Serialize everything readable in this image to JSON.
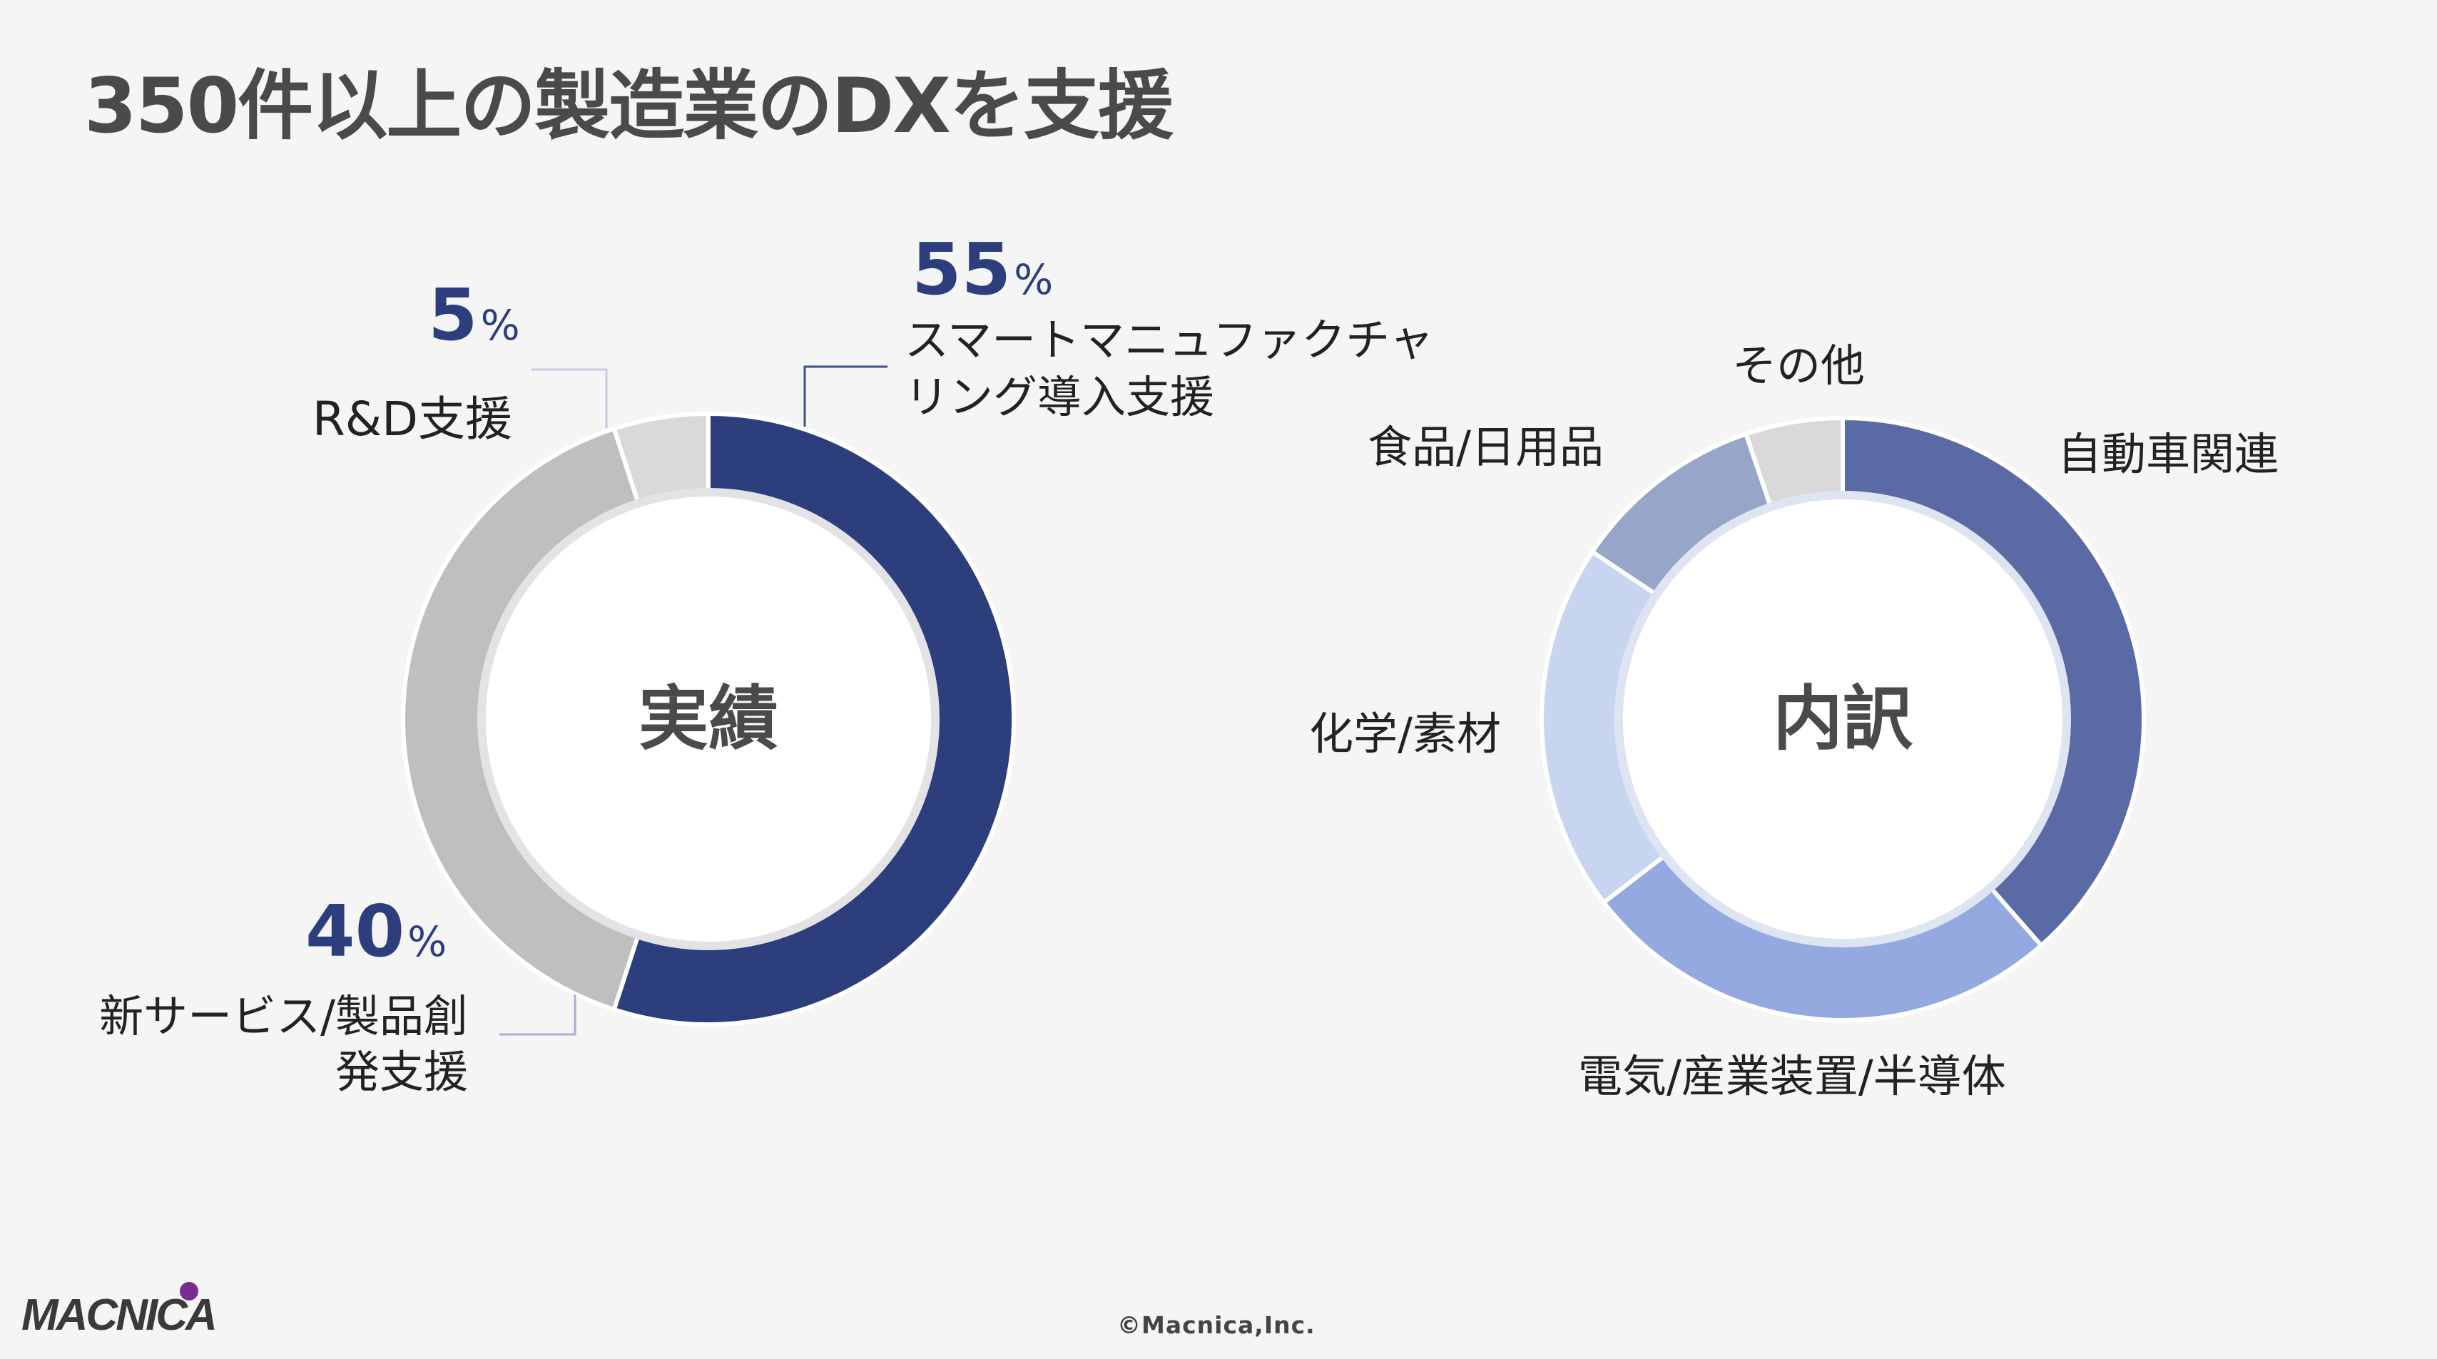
{
  "title": "350件以上の製造業のDXを支援",
  "colors": {
    "dark_navy": "#2d3e7c",
    "light_gray": "#d9d9d9",
    "mid_gray": "#bfbfbf",
    "slate_blue": "#5a6aa5",
    "periwinkle": "#93a9e0",
    "pale_blue": "#c8d5f1",
    "gray_blue": "#96a5c8",
    "logo_purple": "#7a2b8f"
  },
  "chart_data": [
    {
      "type": "pie",
      "variant": "donut",
      "center_label": "実績",
      "slices": [
        {
          "label": "スマートマニュファクチャリング導入支援",
          "label_lines": [
            "スマートマニュファクチャ",
            "リング導入支援"
          ],
          "value": 55,
          "value_text": "55",
          "unit": "%",
          "color": "#2d3e7c"
        },
        {
          "label": "新サービス/製品創発支援",
          "label_lines": [
            "新サービス/製品創",
            "発支援"
          ],
          "value": 40,
          "value_text": "40",
          "unit": "%",
          "color": "#bfbfbf"
        },
        {
          "label": "R&D支援",
          "label_lines": [
            "R&D支援"
          ],
          "value": 5,
          "value_text": "5",
          "unit": "%",
          "color": "#d9d9d9"
        }
      ]
    },
    {
      "type": "pie",
      "variant": "donut",
      "center_label": "内訳",
      "slices": [
        {
          "label": "自動車関連",
          "value": 37,
          "color": "#5a6aa5"
        },
        {
          "label": "電気/産業装置/半導体",
          "value": 25,
          "color": "#93a9e0"
        },
        {
          "label": "化学/素材",
          "value": 19,
          "color": "#c8d5f1"
        },
        {
          "label": "食品/日用品",
          "value": 10,
          "color": "#96a5c8"
        },
        {
          "label": "その他",
          "value": 5,
          "color": "#d9d9d9"
        }
      ]
    }
  ],
  "footer": {
    "logo_text": "MACNICA",
    "copyright": "©Macnica,Inc."
  }
}
